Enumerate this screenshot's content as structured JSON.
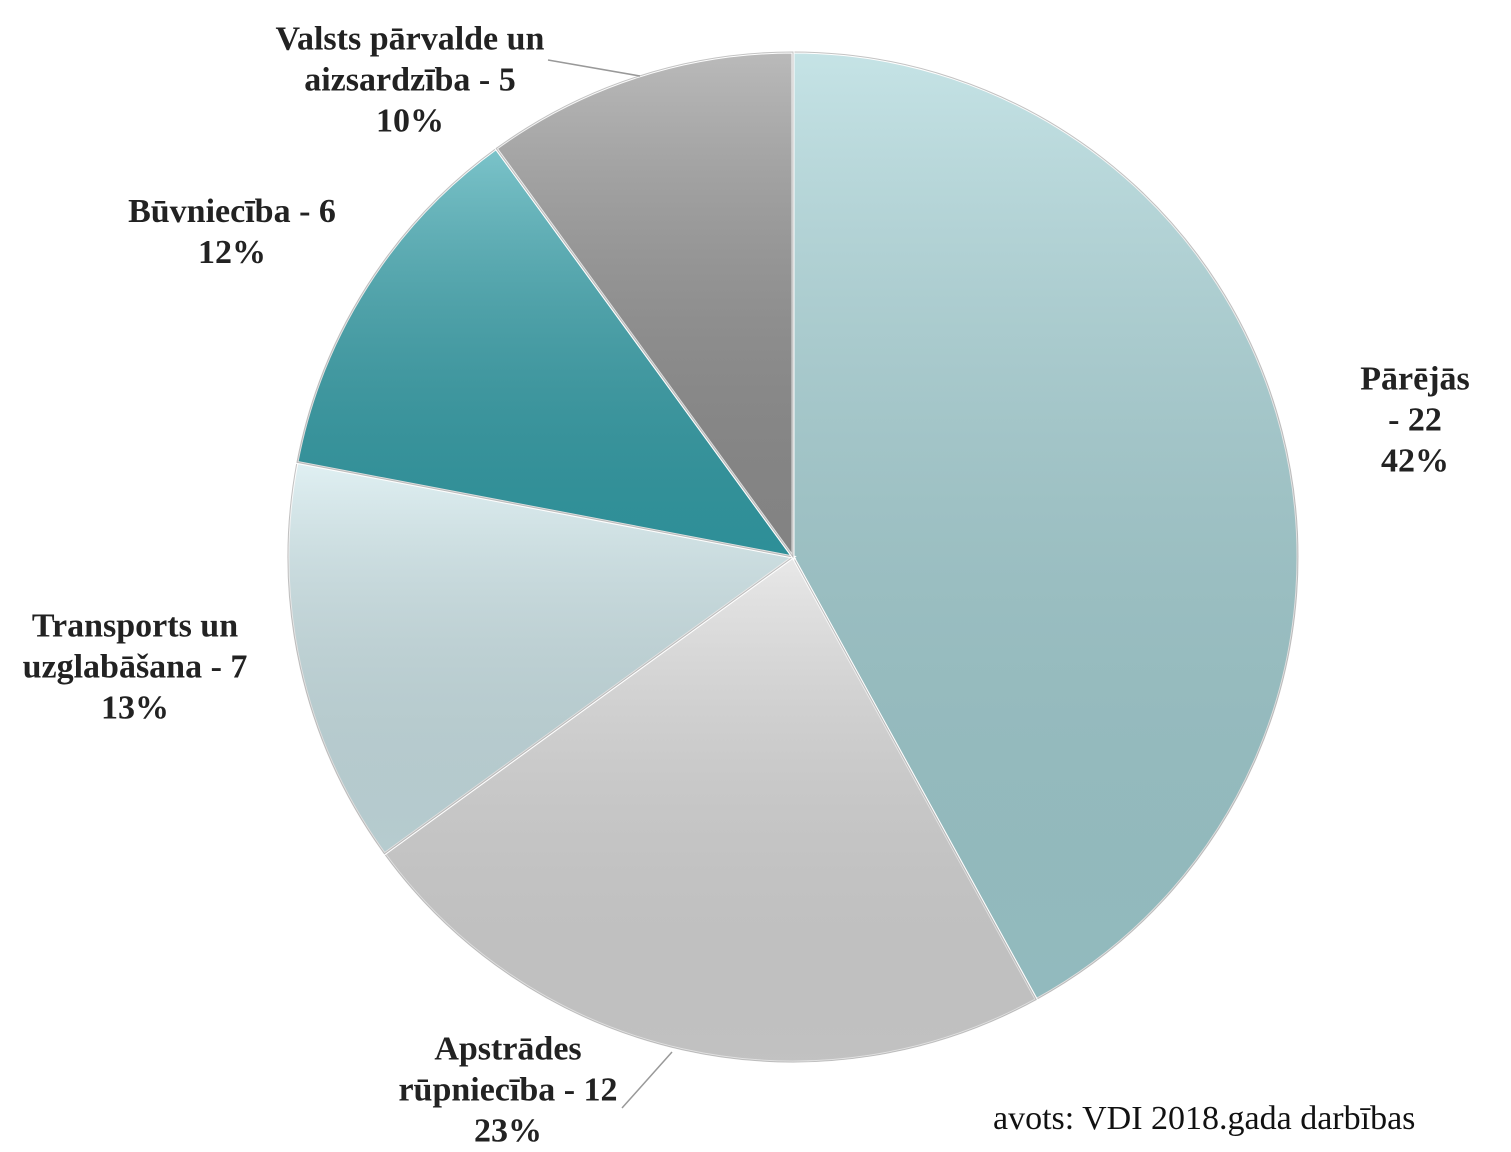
{
  "chart_data": {
    "type": "pie",
    "categories": [
      "Pārējās - 22",
      "Apstrādes\nrūpniecība - 12",
      "Transports un\nuzglabāšana - 7",
      "Būvniecība - 6",
      "Valsts pārvalde un\naizsardzība - 5"
    ],
    "values": [
      42,
      23,
      13,
      12,
      10
    ],
    "value_labels": [
      "42%",
      "23%",
      "13%",
      "12%",
      "10%"
    ],
    "colors": [
      "#a6d4d8",
      "#dcdcdc",
      "#cfe8ec",
      "#34a3ad",
      "#959595"
    ],
    "source": "avots: VDI 2018.gada darbības"
  }
}
